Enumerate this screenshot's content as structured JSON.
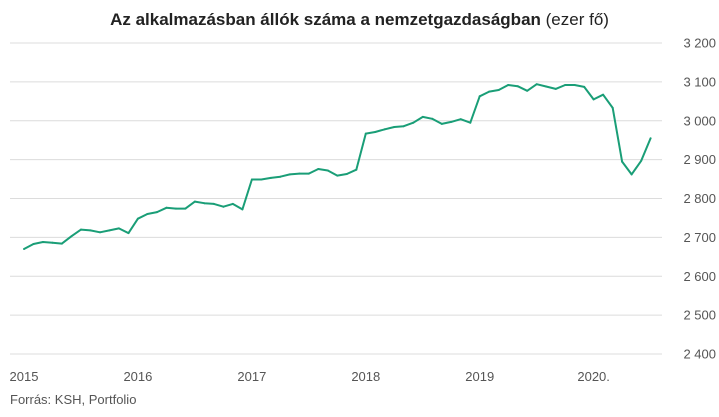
{
  "title": {
    "main": "Az alkalmazásban állók száma a nemzetgazdaságban",
    "unit": "(ezer fő)"
  },
  "source": "Forrás: KSH, Portfolio",
  "chart_data": {
    "type": "line",
    "title": "Az alkalmazásban állók száma a nemzetgazdaságban (ezer fő)",
    "xlabel": "",
    "ylabel": "",
    "ylim": [
      2400,
      3200
    ],
    "yticks": [
      2400,
      2500,
      2600,
      2700,
      2800,
      2900,
      3000,
      3100,
      3200
    ],
    "ytick_labels": [
      "2 400",
      "2 500",
      "2 600",
      "2 700",
      "2 800",
      "2 900",
      "3 000",
      "3 100",
      "3 200"
    ],
    "xticks": [
      2015,
      2016,
      2017,
      2018,
      2019,
      2020
    ],
    "xtick_labels": [
      "2015",
      "2016",
      "2017",
      "2018",
      "2019",
      "2020."
    ],
    "xlim": [
      2015,
      2020.6
    ],
    "grid": true,
    "color": "#1a9e77",
    "series": [
      {
        "x": [
          2015.0,
          2015.083,
          2015.167,
          2015.25,
          2015.333,
          2015.417,
          2015.5,
          2015.583,
          2015.667,
          2015.75,
          2015.833,
          2015.917,
          2016.0,
          2016.083,
          2016.167,
          2016.25,
          2016.333,
          2016.417,
          2016.5,
          2016.583,
          2016.667,
          2016.75,
          2016.833,
          2016.917,
          2017.0,
          2017.083,
          2017.167,
          2017.25,
          2017.333,
          2017.417,
          2017.5,
          2017.583,
          2017.667,
          2017.75,
          2017.833,
          2017.917,
          2018.0,
          2018.083,
          2018.167,
          2018.25,
          2018.333,
          2018.417,
          2018.5,
          2018.583,
          2018.667,
          2018.75,
          2018.833,
          2018.917,
          2019.0,
          2019.083,
          2019.167,
          2019.25,
          2019.333,
          2019.417,
          2019.5,
          2019.583,
          2019.667,
          2019.75,
          2019.833,
          2019.917,
          2020.0,
          2020.083,
          2020.167,
          2020.25,
          2020.333,
          2020.417,
          2020.5
        ],
        "values": [
          2670,
          2683,
          2688,
          2686,
          2684,
          2703,
          2720,
          2718,
          2713,
          2718,
          2723,
          2711,
          2748,
          2760,
          2765,
          2776,
          2774,
          2774,
          2792,
          2788,
          2786,
          2779,
          2786,
          2772,
          2849,
          2849,
          2853,
          2856,
          2862,
          2864,
          2864,
          2876,
          2872,
          2859,
          2863,
          2874,
          2967,
          2971,
          2978,
          2984,
          2986,
          2995,
          3010,
          3005,
          2992,
          2997,
          3004,
          2995,
          3063,
          3075,
          3079,
          3092,
          3089,
          3077,
          3094,
          3088,
          3082,
          3092,
          3092,
          3087,
          3055,
          3067,
          3033,
          2895,
          2862,
          2897,
          2955
        ]
      }
    ]
  }
}
